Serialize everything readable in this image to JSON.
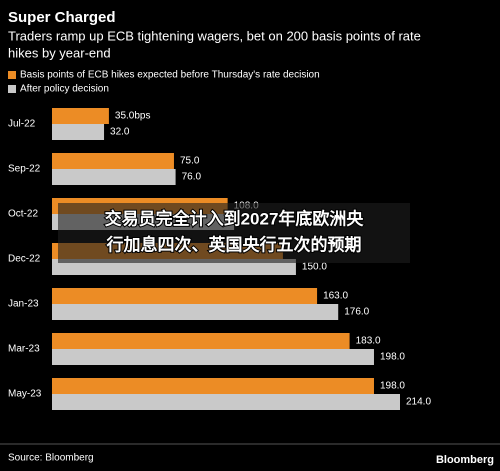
{
  "chart_data": {
    "type": "hbar",
    "title": "Super Charged",
    "subtitle": [
      "Traders ramp up ECB tightening wagers, bet on 200 basis points of rate",
      "hikes by year-end"
    ],
    "categories": [
      "Jul-22",
      "Sep-22",
      "Oct-22",
      "Dec-22",
      "Jan-23",
      "Mar-23",
      "May-23"
    ],
    "series": [
      {
        "name": "Basis points of ECB hikes expected before Thursday's rate decision",
        "color": "#ec8c25",
        "values": [
          35,
          75,
          108,
          142,
          163,
          183,
          198
        ],
        "value_labels": [
          "35.0bps",
          "75.0",
          "108.0",
          null,
          "163.0",
          "183.0",
          "198.0"
        ]
      },
      {
        "name": "After policy decision",
        "color": "#c9c9c9",
        "values": [
          32,
          76,
          112,
          150,
          176,
          198,
          214
        ],
        "value_labels": [
          "32.0",
          "76.0",
          null,
          "150.0",
          "176.0",
          "198.0",
          "214.0"
        ]
      }
    ],
    "source": "Source: Bloomberg",
    "logo": "Bloomberg"
  },
  "overlay_caption": [
    "交易员完全计入到2027年底欧洲央",
    "行加息四次、英国央行五次的预期"
  ]
}
